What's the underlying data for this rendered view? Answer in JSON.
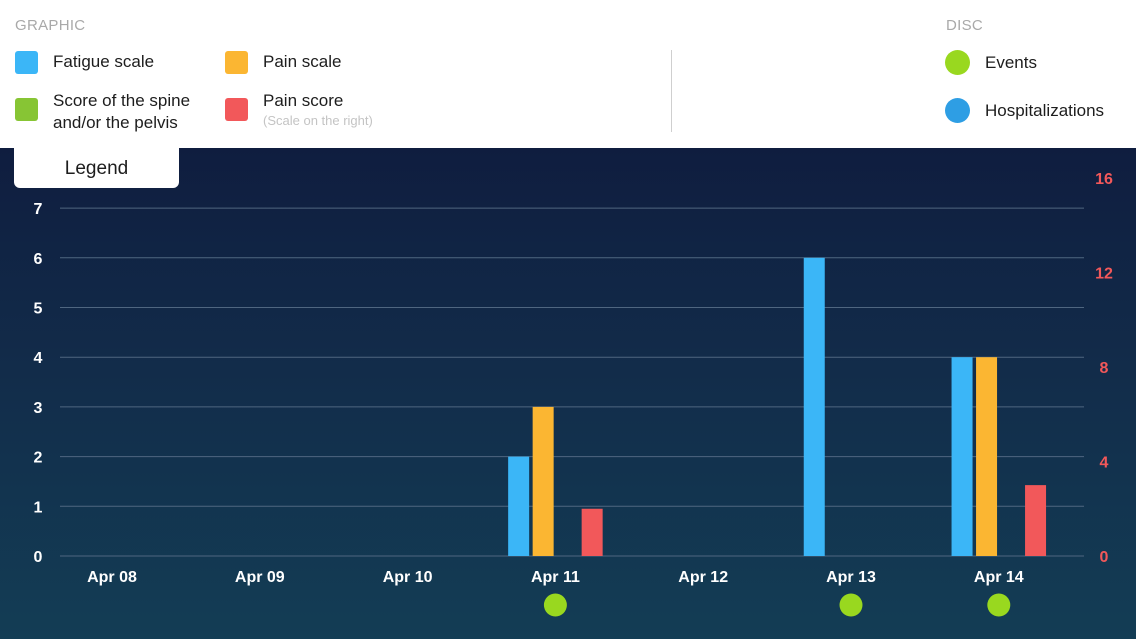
{
  "legend": {
    "graphic_title": "GRAPHIC",
    "disc_title": "DISC",
    "tab_label": "Legend",
    "items": [
      {
        "label": "Fatigue scale",
        "sub": "",
        "color": "#3bb6f7"
      },
      {
        "label": "Pain scale",
        "sub": "",
        "color": "#fbb632"
      },
      {
        "label": "Score of the spine and/or the pelvis",
        "sub": "",
        "color": "#87c534"
      },
      {
        "label": "Pain score",
        "sub": "(Scale on the right)",
        "color": "#f2585a"
      }
    ],
    "disc_items": [
      {
        "label": "Events",
        "color": "#99d81f"
      },
      {
        "label": "Hospitalizations",
        "color": "#2e9ee4"
      }
    ]
  },
  "chart_data": {
    "type": "bar",
    "categories": [
      "Apr 08",
      "Apr 09",
      "Apr 10",
      "Apr 11",
      "Apr 12",
      "Apr 13",
      "Apr 14"
    ],
    "series": [
      {
        "name": "Fatigue scale",
        "axis": "left",
        "color": "#3bb6f7",
        "values": [
          null,
          null,
          null,
          2,
          null,
          6,
          4
        ]
      },
      {
        "name": "Pain scale",
        "axis": "left",
        "color": "#fbb632",
        "values": [
          null,
          null,
          null,
          3,
          null,
          null,
          4
        ]
      },
      {
        "name": "Score of the spine and/or the pelvis",
        "axis": "left",
        "color": "#87c534",
        "values": [
          null,
          null,
          null,
          null,
          null,
          null,
          null
        ]
      },
      {
        "name": "Pain score",
        "axis": "right",
        "color": "#f2585a",
        "values": [
          null,
          null,
          null,
          2,
          null,
          null,
          3
        ]
      }
    ],
    "events": [
      false,
      false,
      false,
      true,
      false,
      true,
      true
    ],
    "y_left": {
      "ticks": [
        0,
        1,
        2,
        3,
        4,
        5,
        6,
        7
      ],
      "lim": [
        0,
        8
      ]
    },
    "y_right": {
      "ticks": [
        0,
        4,
        8,
        12,
        16
      ],
      "lim": [
        0,
        16.8
      ]
    },
    "grid": true,
    "colors": {
      "event": "#99d81f",
      "grid": "#4f6680",
      "right_axis": "#f2585a"
    }
  }
}
